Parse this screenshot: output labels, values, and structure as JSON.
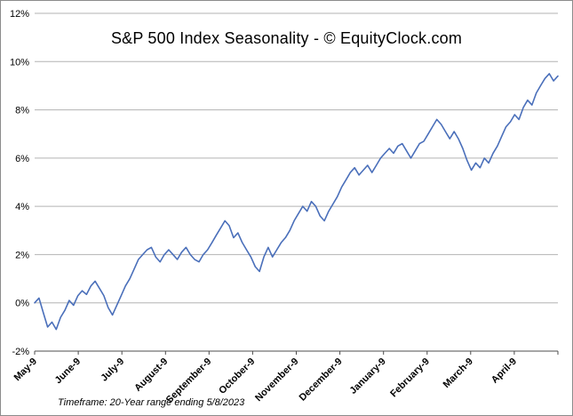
{
  "chart_data": {
    "type": "line",
    "title": "S&P 500 Index Seasonality - © EquityClock.com",
    "footnote": "Timeframe:  20-Year range ending 5/8/2023",
    "categories": [
      "May-9",
      "June-9",
      "July-9",
      "August-9",
      "September-9",
      "October-9",
      "November-9",
      "December-9",
      "January-9",
      "February-9",
      "March-9",
      "April-9"
    ],
    "xlabel": "",
    "ylabel": "",
    "ylim": [
      -2,
      12
    ],
    "ytick_step": 2,
    "ytick_suffix": "%",
    "grid": true,
    "legend": "none",
    "line_color": "#4a6fba",
    "values": [
      0.0,
      0.2,
      -0.4,
      -1.0,
      -0.8,
      -1.1,
      -0.6,
      -0.3,
      0.1,
      -0.1,
      0.3,
      0.5,
      0.35,
      0.7,
      0.9,
      0.6,
      0.3,
      -0.2,
      -0.5,
      -0.1,
      0.3,
      0.7,
      1.0,
      1.4,
      1.8,
      2.0,
      2.2,
      2.3,
      1.9,
      1.7,
      2.0,
      2.2,
      2.0,
      1.8,
      2.1,
      2.3,
      2.0,
      1.8,
      1.7,
      2.0,
      2.2,
      2.5,
      2.8,
      3.1,
      3.4,
      3.2,
      2.7,
      2.9,
      2.5,
      2.2,
      1.9,
      1.5,
      1.3,
      1.9,
      2.3,
      1.9,
      2.2,
      2.5,
      2.7,
      3.0,
      3.4,
      3.7,
      4.0,
      3.8,
      4.2,
      4.0,
      3.6,
      3.4,
      3.8,
      4.1,
      4.4,
      4.8,
      5.1,
      5.4,
      5.6,
      5.3,
      5.5,
      5.7,
      5.4,
      5.7,
      6.0,
      6.2,
      6.4,
      6.2,
      6.5,
      6.6,
      6.3,
      6.0,
      6.3,
      6.6,
      6.7,
      7.0,
      7.3,
      7.6,
      7.4,
      7.1,
      6.8,
      7.1,
      6.8,
      6.4,
      5.9,
      5.5,
      5.8,
      5.6,
      6.0,
      5.8,
      6.2,
      6.5,
      6.9,
      7.3,
      7.5,
      7.8,
      7.6,
      8.1,
      8.4,
      8.2,
      8.7,
      9.0,
      9.3,
      9.5,
      9.2,
      9.4
    ]
  }
}
